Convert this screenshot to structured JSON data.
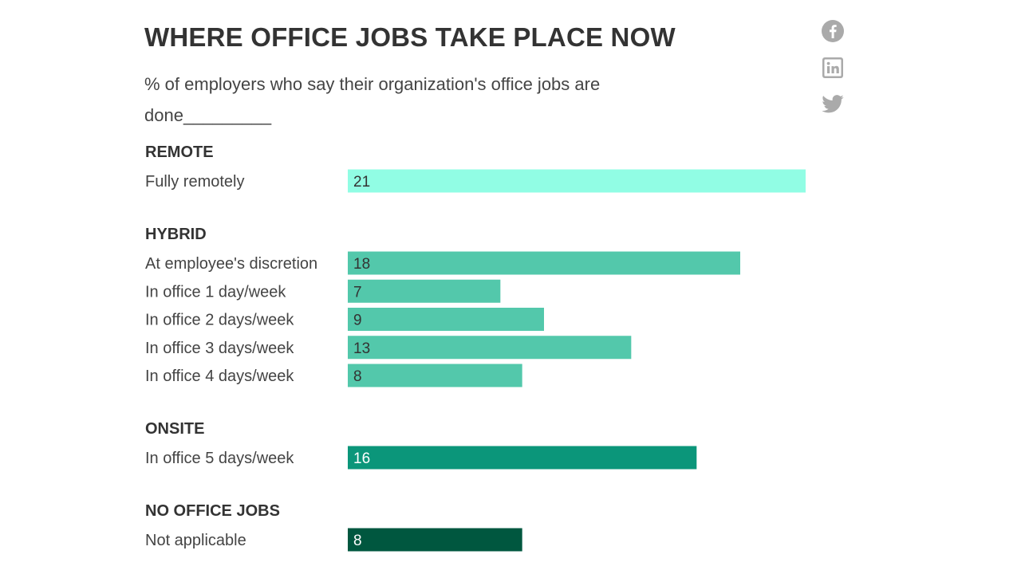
{
  "header": {
    "title": "WHERE OFFICE JOBS TAKE PLACE NOW",
    "subtitle": "% of employers who say their organization's office jobs are done_________"
  },
  "share": [
    {
      "name": "facebook-icon",
      "color": "#aaaaaa"
    },
    {
      "name": "linkedin-icon",
      "color": "#aaaaaa"
    },
    {
      "name": "twitter-icon",
      "color": "#aaaaaa"
    }
  ],
  "chart_data": {
    "type": "bar",
    "orientation": "horizontal",
    "title": "WHERE OFFICE JOBS TAKE PLACE NOW",
    "subtitle": "% of employers who say their organization's office jobs are done_________",
    "xlim": [
      0,
      21
    ],
    "grid": false,
    "legend": "none",
    "groups": [
      {
        "name": "REMOTE",
        "color": "#91fde4",
        "label_color": "#333333",
        "items": [
          {
            "label": "Fully remotely",
            "value": 21
          }
        ]
      },
      {
        "name": "HYBRID",
        "color": "#53c8ab",
        "label_color": "#333333",
        "items": [
          {
            "label": "At employee's discretion",
            "value": 18
          },
          {
            "label": "In office 1 day/week",
            "value": 7
          },
          {
            "label": "In office 2 days/week",
            "value": 9
          },
          {
            "label": "In office 3 days/week",
            "value": 13
          },
          {
            "label": "In office 4 days/week",
            "value": 8
          }
        ]
      },
      {
        "name": "ONSITE",
        "color": "#0b967a",
        "label_color": "#ffffff",
        "items": [
          {
            "label": "In office 5 days/week",
            "value": 16
          }
        ]
      },
      {
        "name": "NO OFFICE JOBS",
        "color": "#00573f",
        "label_color": "#ffffff",
        "items": [
          {
            "label": "Not applicable",
            "value": 8
          }
        ]
      }
    ]
  }
}
